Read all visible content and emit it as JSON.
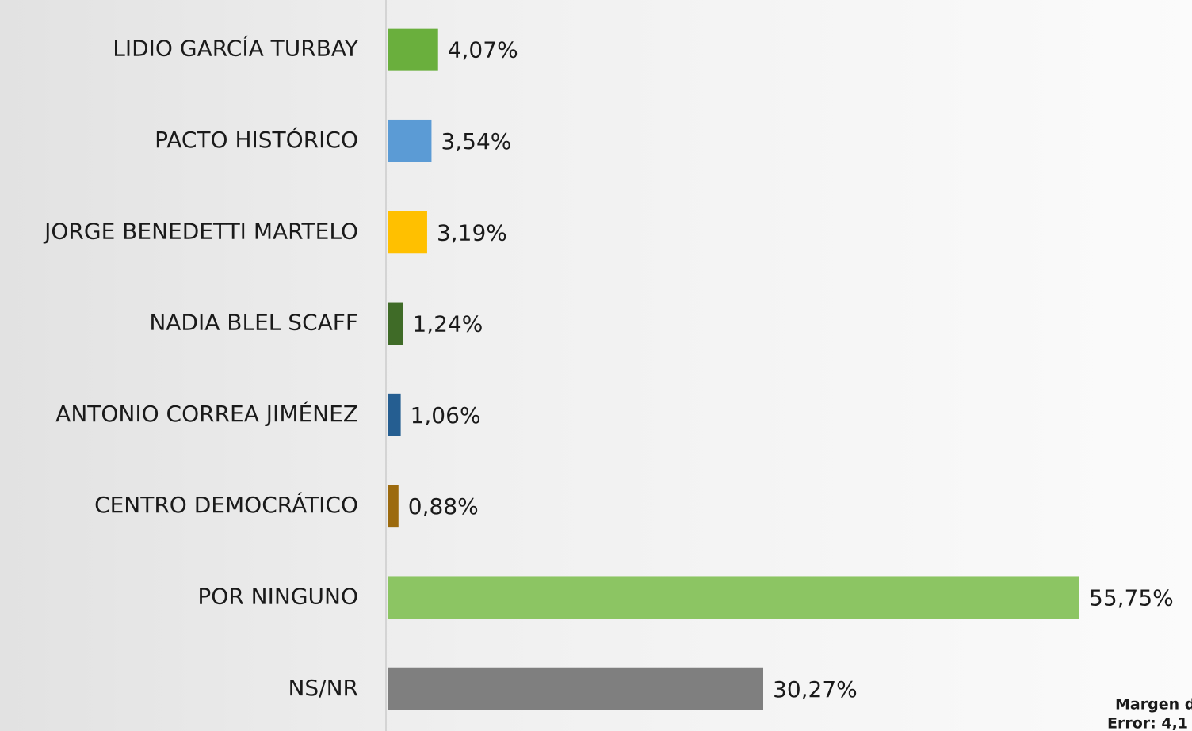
{
  "chart_data": {
    "type": "bar",
    "orientation": "horizontal",
    "categories": [
      "LIDIO GARCÍA TURBAY",
      "PACTO HISTÓRICO",
      "JORGE BENEDETTI MARTELO",
      "NADIA BLEL SCAFF",
      "ANTONIO CORREA JIMÉNEZ",
      "CENTRO DEMOCRÁTICO",
      "POR NINGUNO",
      "NS/NR"
    ],
    "values": [
      4.07,
      3.54,
      3.19,
      1.24,
      1.06,
      0.88,
      55.75,
      30.27
    ],
    "value_labels": [
      "4,07%",
      "3,54%",
      "3,19%",
      "1,24%",
      "1,06%",
      "0,88%",
      "55,75%",
      "30,27%"
    ],
    "colors": [
      "#6aaf3d",
      "#5b9bd5",
      "#ffc000",
      "#3f6b27",
      "#255e91",
      "#9c6a0e",
      "#8cc563",
      "#7f7f7f"
    ],
    "annotation": [
      "Margen de",
      "Error: 4,1"
    ]
  }
}
